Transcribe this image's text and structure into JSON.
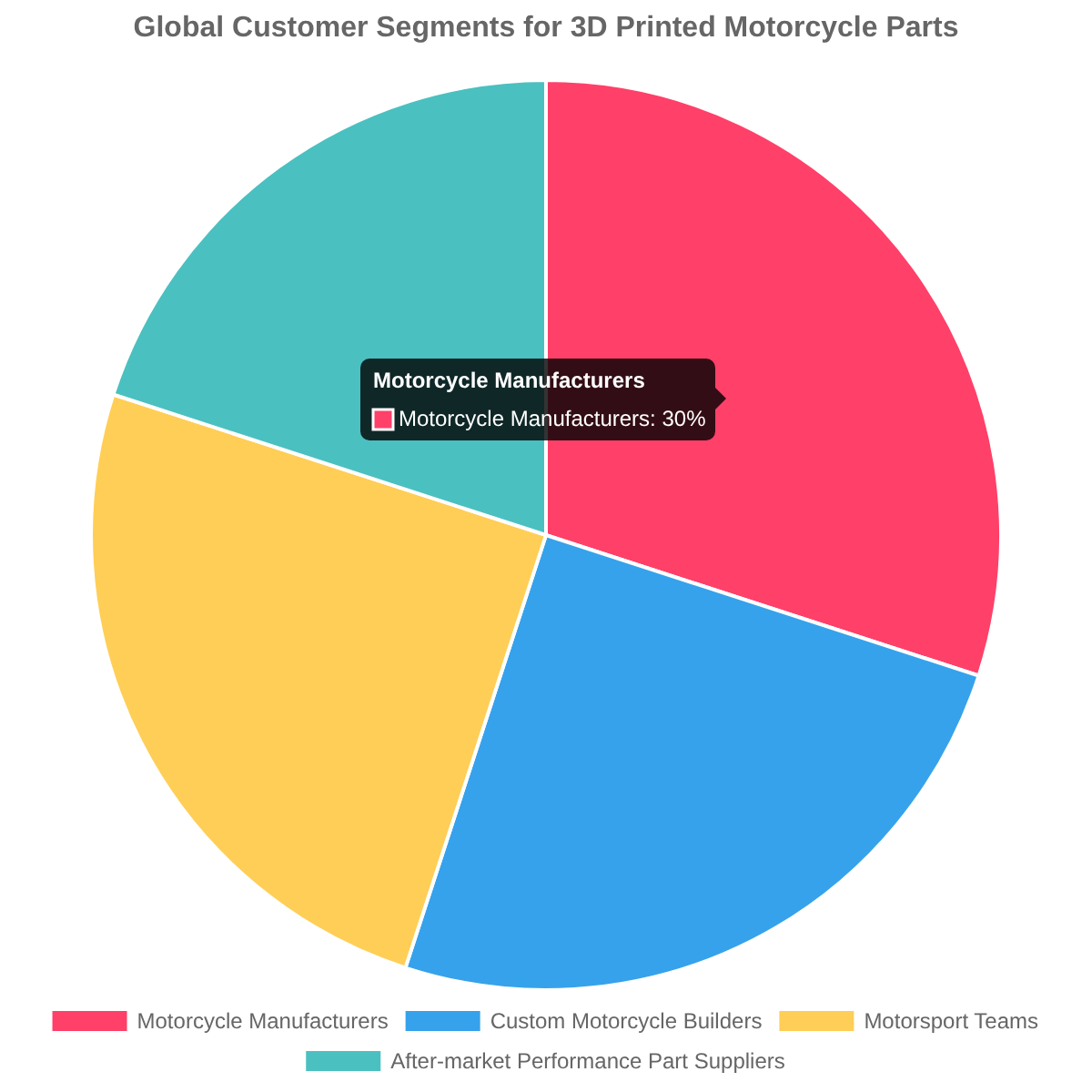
{
  "chart_data": {
    "type": "pie",
    "title": "Global Customer Segments for 3D Printed Motorcycle Parts",
    "categories": [
      "Motorcycle Manufacturers",
      "Custom Motorcycle Builders",
      "Motorsport Teams",
      "After-market Performance Part Suppliers"
    ],
    "values": [
      30,
      25,
      25,
      20
    ],
    "colors": [
      "#ff4069",
      "#36a2eb",
      "#ffce56",
      "#4bc0c0"
    ],
    "legend": "bottom",
    "annotations": [
      "Motorcycle Manufacturers",
      "Motorcycle Manufacturers: 30%"
    ]
  }
}
